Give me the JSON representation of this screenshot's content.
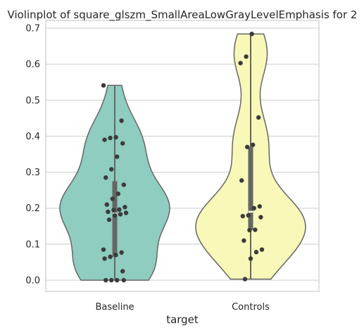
{
  "chart_data": {
    "type": "violin",
    "title": "Violinplot of square_glszm_SmallAreaLowGrayLevelEmphasis for 2",
    "xlabel": "target",
    "ylabel": "",
    "ylim": [
      -0.03,
      0.72
    ],
    "yticks": [
      "0.0",
      "0.1",
      "0.2",
      "0.3",
      "0.4",
      "0.5",
      "0.6",
      "0.7"
    ],
    "grid": true,
    "categories": [
      "Baseline",
      "Controls"
    ],
    "colors": [
      "#8ecdc0",
      "#f8f8b8"
    ],
    "series": [
      {
        "category": "Baseline",
        "fill": "#8ecdc0",
        "min": 0.0,
        "max": 0.541,
        "q1": 0.065,
        "median": 0.185,
        "q3": 0.275,
        "points": [
          0.541,
          0.443,
          0.397,
          0.395,
          0.39,
          0.38,
          0.343,
          0.308,
          0.285,
          0.265,
          0.24,
          0.226,
          0.21,
          0.203,
          0.196,
          0.195,
          0.19,
          0.187,
          0.183,
          0.18,
          0.168,
          0.085,
          0.077,
          0.07,
          0.065,
          0.06,
          0.025,
          0.0,
          0.0,
          0.0,
          0.0
        ]
      },
      {
        "category": "Controls",
        "fill": "#f8f8b8",
        "min": 0.003,
        "max": 0.684,
        "q1": 0.14,
        "median": 0.19,
        "q3": 0.37,
        "points": [
          0.684,
          0.621,
          0.603,
          0.452,
          0.376,
          0.37,
          0.277,
          0.205,
          0.2,
          0.18,
          0.178,
          0.175,
          0.14,
          0.139,
          0.11,
          0.085,
          0.078,
          0.06,
          0.003
        ]
      }
    ]
  }
}
